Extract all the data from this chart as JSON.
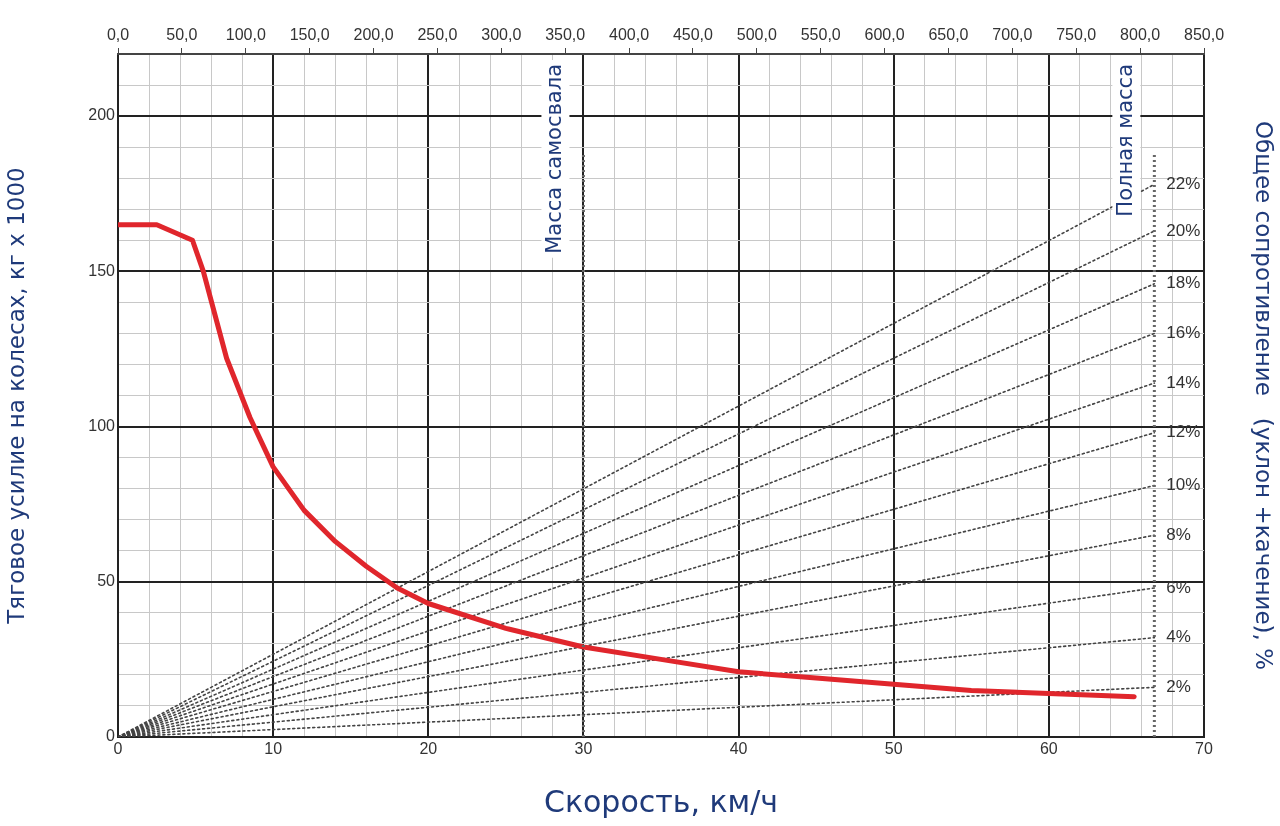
{
  "chart_data": {
    "type": "line",
    "xlabel": "Скорость, км/ч",
    "ylabel": "Тяговое усилие на колесах, кг x 1000",
    "y2label": "Общее сопротивление   (уклон +качение), %",
    "xlim": [
      0,
      70
    ],
    "ylim": [
      0,
      220
    ],
    "xticks": [
      0,
      {
        "value": 2,
        "label": null
      },
      {
        "value": 4,
        "label": null
      },
      {
        "value": 6,
        "label": null
      },
      {
        "value": 8,
        "label": null
      },
      10,
      {
        "value": 12,
        "label": null
      },
      {
        "value": 14,
        "label": null
      },
      {
        "value": 16,
        "label": null
      },
      {
        "value": 18,
        "label": null
      },
      20,
      {
        "value": 22,
        "label": null
      },
      {
        "value": 24,
        "label": null
      },
      {
        "value": 26,
        "label": null
      },
      {
        "value": 28,
        "label": null
      },
      30,
      {
        "value": 32,
        "label": null
      },
      {
        "value": 34,
        "label": null
      },
      {
        "value": 36,
        "label": null
      },
      {
        "value": 38,
        "label": null
      },
      40,
      {
        "value": 42,
        "label": null
      },
      {
        "value": 44,
        "label": null
      },
      {
        "value": 46,
        "label": null
      },
      {
        "value": 48,
        "label": null
      },
      50,
      {
        "value": 52,
        "label": null
      },
      {
        "value": 54,
        "label": null
      },
      {
        "value": 56,
        "label": null
      },
      {
        "value": 58,
        "label": null
      },
      60,
      {
        "value": 62,
        "label": null
      },
      {
        "value": 64,
        "label": null
      },
      {
        "value": 66,
        "label": null
      },
      {
        "value": 68,
        "label": null
      },
      70
    ],
    "yticks": [
      0,
      {
        "value": 10,
        "label": null
      },
      {
        "value": 20,
        "label": null
      },
      {
        "value": 30,
        "label": null
      },
      {
        "value": 40,
        "label": null
      },
      50,
      {
        "value": 60,
        "label": null
      },
      {
        "value": 70,
        "label": null
      },
      {
        "value": 80,
        "label": null
      },
      {
        "value": 90,
        "label": null
      },
      100,
      {
        "value": 110,
        "label": null
      },
      {
        "value": 120,
        "label": null
      },
      {
        "value": 130,
        "label": null
      },
      {
        "value": 140,
        "label": null
      },
      150,
      {
        "value": 160,
        "label": null
      },
      {
        "value": 170,
        "label": null
      },
      {
        "value": 180,
        "label": null
      },
      {
        "value": 190,
        "label": null
      },
      200,
      {
        "value": 210,
        "label": null
      },
      {
        "value": 220,
        "label": null
      }
    ],
    "x2lim": [
      0,
      850
    ],
    "x2ticks": [
      {
        "value": 0,
        "label": "0,0"
      },
      {
        "value": 50,
        "label": "50,0"
      },
      {
        "value": 100,
        "label": "100,0"
      },
      {
        "value": 150,
        "label": "150,0"
      },
      {
        "value": 200,
        "label": "200,0"
      },
      {
        "value": 250,
        "label": "250,0"
      },
      {
        "value": 300,
        "label": "300,0"
      },
      {
        "value": 350,
        "label": "350,0"
      },
      {
        "value": 400,
        "label": "400,0"
      },
      {
        "value": 450,
        "label": "450,0"
      },
      {
        "value": 500,
        "label": "500,0"
      },
      {
        "value": 550,
        "label": "550,0"
      },
      {
        "value": 600,
        "label": "600,0"
      },
      {
        "value": 650,
        "label": "650,0"
      },
      {
        "value": 700,
        "label": "700,0"
      },
      {
        "value": 750,
        "label": "750,0"
      },
      {
        "value": 800,
        "label": "800,0"
      },
      {
        "value": 850,
        "label": "850,0"
      }
    ],
    "grid": true,
    "legend": false,
    "ref_lines": [
      {
        "axis": "x",
        "value": 30,
        "label": "Масса самосвала",
        "color": "#666666",
        "line_style": "dotted"
      },
      {
        "axis": "x",
        "value": 66.8,
        "label": "Полная масса",
        "color": "#666666",
        "line_style": "dotted"
      }
    ],
    "series": [
      {
        "color": "#e0262c",
        "line_style": "solid",
        "x": [
          0,
          2.5,
          4.8,
          5.5,
          7,
          8.5,
          10,
          12,
          14,
          16,
          18,
          20,
          25,
          30,
          35,
          40,
          45,
          50,
          55,
          60,
          65.5
        ],
        "values": [
          165,
          165,
          160,
          150,
          122,
          103,
          87,
          73,
          63,
          55,
          48,
          43,
          35,
          29,
          25,
          21,
          19,
          17,
          15,
          14,
          13
        ]
      },
      {
        "name": "22%",
        "color": "#444444",
        "line_style": "dotted",
        "x": [
          0,
          66.8
        ],
        "values": [
          0,
          178
        ]
      },
      {
        "name": "20%",
        "color": "#444444",
        "line_style": "dotted",
        "x": [
          0,
          66.8
        ],
        "values": [
          0,
          163
        ]
      },
      {
        "name": "18%",
        "color": "#444444",
        "line_style": "dotted",
        "x": [
          0,
          66.8
        ],
        "values": [
          0,
          146
        ]
      },
      {
        "name": "16%",
        "color": "#444444",
        "line_style": "dotted",
        "x": [
          0,
          66.8
        ],
        "values": [
          0,
          130
        ]
      },
      {
        "name": "14%",
        "color": "#444444",
        "line_style": "dotted",
        "x": [
          0,
          66.8
        ],
        "values": [
          0,
          114
        ]
      },
      {
        "name": "12%",
        "color": "#444444",
        "line_style": "dotted",
        "x": [
          0,
          66.8
        ],
        "values": [
          0,
          98
        ]
      },
      {
        "name": "10%",
        "color": "#444444",
        "line_style": "dotted",
        "x": [
          0,
          66.8
        ],
        "values": [
          0,
          81
        ]
      },
      {
        "name": "8%",
        "color": "#444444",
        "line_style": "dotted",
        "x": [
          0,
          66.8
        ],
        "values": [
          0,
          65
        ]
      },
      {
        "name": "6%",
        "color": "#444444",
        "line_style": "dotted",
        "x": [
          0,
          66.8
        ],
        "values": [
          0,
          48
        ]
      },
      {
        "name": "4%",
        "color": "#444444",
        "line_style": "dotted",
        "x": [
          0,
          66.8
        ],
        "values": [
          0,
          32
        ]
      },
      {
        "name": "2%",
        "color": "#444444",
        "line_style": "dotted",
        "x": [
          0,
          66.8
        ],
        "values": [
          0,
          16
        ]
      }
    ]
  }
}
